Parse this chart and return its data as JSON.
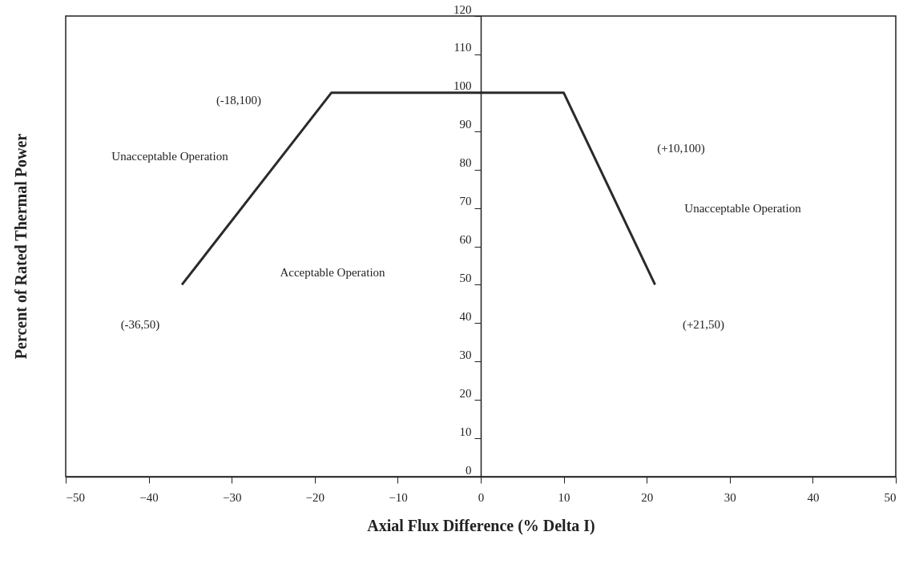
{
  "chart_data": {
    "type": "line",
    "xlabel": "Axial Flux Difference (% Delta I)",
    "ylabel": "Percent of Rated Thermal Power",
    "x": [
      -36,
      -18,
      10,
      21
    ],
    "series": [
      {
        "color": "#2a2a2a",
        "values": [
          50,
          100,
          100,
          50
        ]
      }
    ],
    "xlim": [
      -50,
      50
    ],
    "ylim": [
      0,
      120
    ],
    "xticks": [
      -50,
      -40,
      -30,
      -20,
      -10,
      0,
      10,
      20,
      30,
      40,
      50
    ],
    "yticks": [
      0,
      10,
      20,
      30,
      40,
      50,
      60,
      70,
      80,
      90,
      100,
      110,
      120
    ],
    "grid": false,
    "marker": "none",
    "line_style": "solid",
    "annotations": [
      "(-18,100)",
      "(+10,100)",
      "Unacceptable Operation",
      "Unacceptable Operation",
      "Acceptable Operation",
      "(-36,50)",
      "(+21,50)"
    ]
  }
}
